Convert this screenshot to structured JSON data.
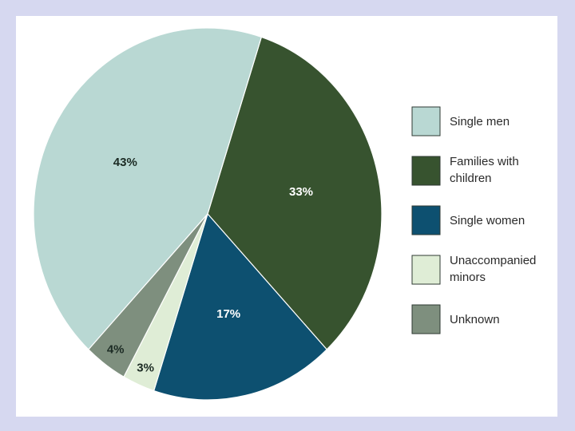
{
  "chart_data": {
    "type": "pie",
    "title": "",
    "slices": [
      {
        "name": "Single men",
        "value": 43,
        "label": "43%",
        "color": "#b9d8d3",
        "label_color": "#1c2b24"
      },
      {
        "name": "Families with children",
        "value": 33,
        "label": "33%",
        "color": "#37532f",
        "label_color": "#ffffff"
      },
      {
        "name": "Single women",
        "value": 17,
        "label": "17%",
        "color": "#0d5070",
        "label_color": "#ffffff"
      },
      {
        "name": "Unaccompanied minors",
        "value": 3,
        "label": "3%",
        "color": "#dfedd6",
        "label_color": "#1c2b24"
      },
      {
        "name": "Unknown",
        "value": 4,
        "label": "4%",
        "color": "#7e8f7e",
        "label_color": "#1c2b24"
      }
    ],
    "legend": {
      "position": "right",
      "items": [
        {
          "lines": [
            "Single men"
          ],
          "color": "#b9d8d3"
        },
        {
          "lines": [
            "Families with",
            "children"
          ],
          "color": "#37532f"
        },
        {
          "lines": [
            "Single women"
          ],
          "color": "#0d5070"
        },
        {
          "lines": [
            "Unaccompanied",
            "minors"
          ],
          "color": "#dfedd6"
        },
        {
          "lines": [
            "Unknown"
          ],
          "color": "#7e8f7e"
        }
      ]
    }
  }
}
